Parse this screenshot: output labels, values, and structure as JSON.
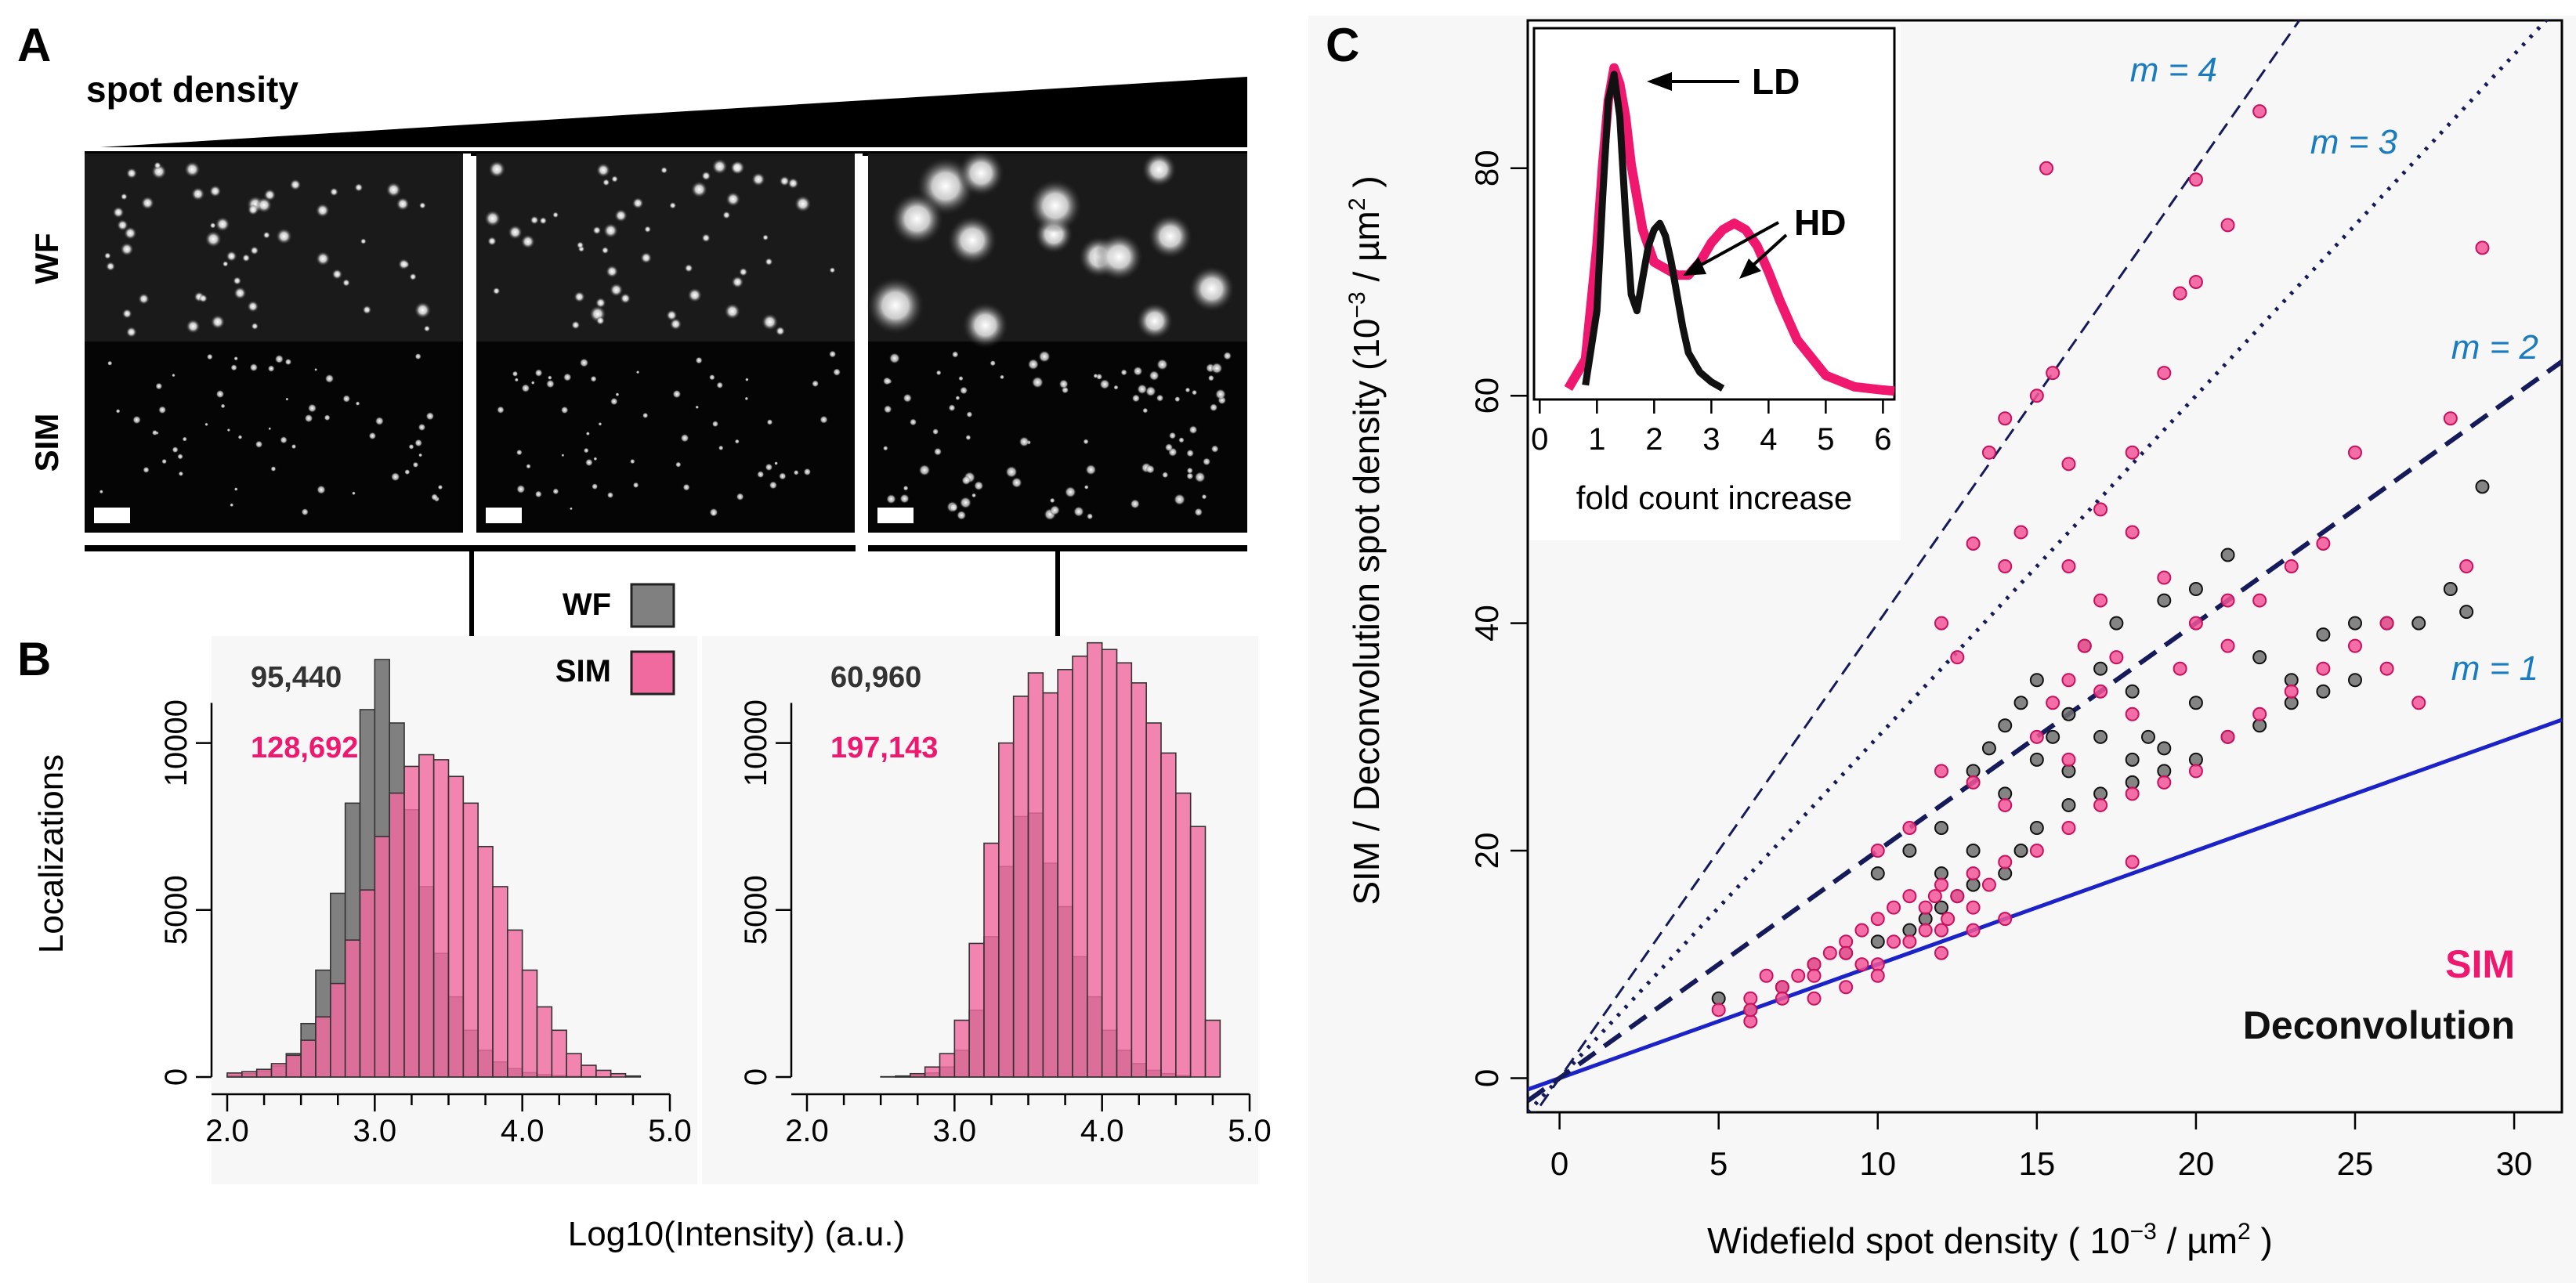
{
  "figure": {
    "panel_a": {
      "letter": "A",
      "gradient_label": "spot density",
      "row_labels": [
        "WF",
        "SIM"
      ],
      "tiles": 3,
      "scale_bar": "scale bar"
    },
    "panel_b": {
      "letter": "B",
      "ylabel": "Localizations",
      "xlabel": "Log10(Intensity) (a.u.)",
      "legend": [
        {
          "label": "WF",
          "color": "#808080"
        },
        {
          "label": "SIM",
          "color": "#f06aa0"
        }
      ]
    },
    "panel_c": {
      "letter": "C",
      "xlabel_main": "Widefield spot density ( 10",
      "xlabel_exp": "−3",
      "xlabel_tail": " / µm",
      "xlabel_sq": "2",
      "xlabel_close": " )",
      "ylabel_main": "SIM / Deconvolution spot density (10",
      "ylabel_exp": "−3",
      "ylabel_tail": " / µm",
      "ylabel_sq": "2",
      "ylabel_close": " )",
      "legend_sim": "SIM",
      "legend_deconv": "Deconvolution",
      "inset": {
        "xlabel": "fold count increase",
        "labels": [
          "LD",
          "HD"
        ]
      }
    },
    "colors": {
      "sim": "#f0186e",
      "sim_bar": "#f06aa0",
      "wf": "#808080",
      "deconv": "#2a2a2a",
      "line_m1": "#1a22c8",
      "slope_label": "#1a7cc0",
      "panel_bg": "#f7f7f7"
    }
  },
  "chart_data": [
    {
      "type": "bar",
      "panel": "B-left",
      "annotations": [
        "95,440",
        "128,692"
      ],
      "xlim": [
        2.0,
        5.0
      ],
      "ylim": [
        0,
        12500
      ],
      "xticks": [
        "2.0",
        "3.0",
        "4.0",
        "5.0"
      ],
      "yticks": [
        "0",
        "5000",
        "10000"
      ],
      "bin_start": 2.0,
      "bin_width": 0.1,
      "series": [
        {
          "name": "WF",
          "values": [
            50,
            100,
            180,
            330,
            700,
            1600,
            3200,
            5500,
            8200,
            11000,
            12500,
            10600,
            8000,
            5700,
            3700,
            2400,
            1400,
            800,
            450,
            250,
            130,
            70,
            40,
            20,
            10,
            5,
            0,
            0
          ]
        },
        {
          "name": "SIM",
          "values": [
            120,
            160,
            230,
            400,
            650,
            1100,
            1800,
            2800,
            4100,
            5600,
            7200,
            8500,
            9300,
            9650,
            9500,
            9000,
            8200,
            6900,
            5700,
            4400,
            3200,
            2100,
            1400,
            700,
            350,
            200,
            100,
            30
          ]
        }
      ]
    },
    {
      "type": "bar",
      "panel": "B-right",
      "annotations": [
        "60,960",
        "197,143"
      ],
      "xlim": [
        2.0,
        5.0
      ],
      "ylim": [
        0,
        12500
      ],
      "xticks": [
        "2.0",
        "3.0",
        "4.0",
        "5.0"
      ],
      "yticks": [
        "0",
        "5000",
        "10000"
      ],
      "bin_start": 2.0,
      "bin_width": 0.1,
      "series": [
        {
          "name": "WF",
          "values": [
            0,
            0,
            0,
            0,
            0,
            10,
            20,
            50,
            120,
            300,
            800,
            2000,
            4200,
            6300,
            7800,
            7900,
            6400,
            5100,
            3600,
            2400,
            1400,
            800,
            400,
            200,
            100,
            40,
            0,
            0
          ]
        },
        {
          "name": "SIM",
          "values": [
            0,
            0,
            0,
            0,
            0,
            0,
            30,
            100,
            300,
            700,
            1700,
            4000,
            7000,
            10000,
            11400,
            12100,
            11500,
            12200,
            12600,
            13000,
            12800,
            12400,
            11800,
            10600,
            9700,
            8500,
            7500,
            1700
          ]
        }
      ]
    },
    {
      "type": "scatter",
      "panel": "C",
      "xlim": [
        -1,
        31.5
      ],
      "ylim": [
        -3,
        93
      ],
      "xticks": [
        0,
        5,
        10,
        15,
        20,
        25,
        30
      ],
      "yticks": [
        0,
        20,
        40,
        60,
        80
      ],
      "lines": [
        {
          "label": "m = 1",
          "slope": 1,
          "intercept": 0
        },
        {
          "label": "m = 2",
          "slope": 2,
          "intercept": 0
        },
        {
          "label": "m = 3",
          "slope": 3,
          "intercept": 0
        },
        {
          "label": "m = 4",
          "slope": 4,
          "intercept": 0
        }
      ],
      "series": [
        {
          "name": "SIM",
          "points": [
            [
              5,
              6
            ],
            [
              6,
              7
            ],
            [
              6.5,
              9
            ],
            [
              7,
              8
            ],
            [
              7.5,
              9
            ],
            [
              8,
              10
            ],
            [
              8.5,
              11
            ],
            [
              9,
              12
            ],
            [
              9.5,
              13
            ],
            [
              10,
              14
            ],
            [
              10.5,
              15
            ],
            [
              11,
              16
            ],
            [
              11.5,
              15
            ],
            [
              12,
              17
            ],
            [
              12.5,
              16
            ],
            [
              13,
              18
            ],
            [
              13.5,
              17
            ],
            [
              14,
              19
            ],
            [
              9,
              8
            ],
            [
              10,
              10
            ],
            [
              11,
              12
            ],
            [
              12,
              13
            ],
            [
              6,
              5
            ],
            [
              8,
              7
            ],
            [
              10,
              9
            ],
            [
              12,
              11
            ],
            [
              13,
              13
            ],
            [
              14,
              14
            ],
            [
              15,
              20
            ],
            [
              16,
              22
            ],
            [
              17,
              24
            ],
            [
              18,
              25
            ],
            [
              19,
              26
            ],
            [
              20,
              27
            ],
            [
              21,
              30
            ],
            [
              22,
              32
            ],
            [
              23,
              34
            ],
            [
              24,
              36
            ],
            [
              25,
              38
            ],
            [
              26,
              40
            ],
            [
              15,
              30
            ],
            [
              15.5,
              33
            ],
            [
              16,
              35
            ],
            [
              16.5,
              38
            ],
            [
              17,
              42
            ],
            [
              14,
              45
            ],
            [
              14.5,
              48
            ],
            [
              13.5,
              55
            ],
            [
              14,
              58
            ],
            [
              15,
              60
            ],
            [
              15.5,
              62
            ],
            [
              16,
              54
            ],
            [
              13,
              47
            ],
            [
              12,
              40
            ],
            [
              12.5,
              37
            ],
            [
              16,
              45
            ],
            [
              17,
              50
            ],
            [
              18,
              55
            ],
            [
              19,
              62
            ],
            [
              20,
              70
            ],
            [
              21,
              75
            ],
            [
              22,
              85
            ],
            [
              18,
              48
            ],
            [
              19,
              44
            ],
            [
              20,
              40
            ],
            [
              21,
              38
            ],
            [
              22,
              42
            ],
            [
              23,
              45
            ],
            [
              24,
              47
            ],
            [
              25,
              55
            ],
            [
              26,
              36
            ],
            [
              27,
              33
            ],
            [
              28,
              58
            ],
            [
              29,
              73
            ],
            [
              28.5,
              45
            ],
            [
              15.3,
              80
            ],
            [
              20,
              79
            ],
            [
              19.5,
              69
            ],
            [
              21,
              42
            ],
            [
              17,
              34
            ],
            [
              12,
              27
            ],
            [
              11,
              22
            ],
            [
              10,
              20
            ],
            [
              13,
              26
            ],
            [
              16,
              28
            ],
            [
              14,
              24
            ],
            [
              18,
              19
            ],
            [
              18,
              32
            ],
            [
              19.5,
              36
            ],
            [
              17.5,
              37
            ],
            [
              13,
              15
            ],
            [
              11.5,
              13
            ],
            [
              9,
              11
            ],
            [
              8,
              9
            ],
            [
              7,
              7
            ],
            [
              6,
              6
            ],
            [
              10.5,
              12
            ],
            [
              12.2,
              14
            ],
            [
              11.8,
              16
            ],
            [
              9.5,
              10
            ]
          ]
        },
        {
          "name": "Deconvolution",
          "points": [
            [
              5,
              7
            ],
            [
              6,
              6
            ],
            [
              7,
              8
            ],
            [
              8,
              10
            ],
            [
              9,
              11
            ],
            [
              10,
              12
            ],
            [
              11,
              13
            ],
            [
              12,
              15
            ],
            [
              12.5,
              16
            ],
            [
              13,
              17
            ],
            [
              14,
              18
            ],
            [
              14.5,
              20
            ],
            [
              15,
              22
            ],
            [
              16,
              24
            ],
            [
              17,
              25
            ],
            [
              18,
              26
            ],
            [
              19,
              27
            ],
            [
              20,
              28
            ],
            [
              21,
              30
            ],
            [
              22,
              31
            ],
            [
              23,
              33
            ],
            [
              24,
              34
            ],
            [
              25,
              35
            ],
            [
              26,
              40
            ],
            [
              27,
              40
            ],
            [
              28,
              43
            ],
            [
              29,
              52
            ],
            [
              28.5,
              41
            ],
            [
              13,
              27
            ],
            [
              13.5,
              29
            ],
            [
              14,
              31
            ],
            [
              14.5,
              33
            ],
            [
              15,
              35
            ],
            [
              15.5,
              30
            ],
            [
              16,
              27
            ],
            [
              16.5,
              38
            ],
            [
              17,
              36
            ],
            [
              17.5,
              40
            ],
            [
              18,
              34
            ],
            [
              18.5,
              30
            ],
            [
              19,
              42
            ],
            [
              20,
              43
            ],
            [
              21,
              46
            ],
            [
              22,
              37
            ],
            [
              23,
              35
            ],
            [
              24,
              39
            ],
            [
              25,
              40
            ],
            [
              12,
              22
            ],
            [
              11,
              20
            ],
            [
              10,
              18
            ],
            [
              14,
              25
            ],
            [
              15,
              28
            ],
            [
              16,
              32
            ],
            [
              17,
              30
            ],
            [
              18,
              28
            ],
            [
              19,
              29
            ],
            [
              20,
              33
            ],
            [
              13,
              20
            ],
            [
              12,
              18
            ],
            [
              11.5,
              14
            ]
          ]
        }
      ]
    },
    {
      "type": "line",
      "panel": "C-inset",
      "xlim": [
        -0.1,
        6.2
      ],
      "ylim": [
        0,
        1.05
      ],
      "xticks": [
        0,
        1,
        2,
        3,
        4,
        5,
        6
      ],
      "series": [
        {
          "name": "LD",
          "x": [
            0.8,
            1.0,
            1.1,
            1.2,
            1.3,
            1.4,
            1.5,
            1.6,
            1.7,
            1.8,
            1.9,
            2.0,
            2.1,
            2.2,
            2.3,
            2.4,
            2.5,
            2.6,
            2.8,
            3.0,
            3.2
          ],
          "y": [
            0.02,
            0.25,
            0.6,
            0.9,
            0.98,
            0.85,
            0.55,
            0.3,
            0.25,
            0.35,
            0.45,
            0.5,
            0.52,
            0.48,
            0.4,
            0.3,
            0.2,
            0.12,
            0.06,
            0.03,
            0.01
          ]
        },
        {
          "name": "HD",
          "x": [
            0.5,
            0.8,
            1.0,
            1.1,
            1.2,
            1.3,
            1.4,
            1.5,
            1.6,
            1.8,
            2.0,
            2.2,
            2.4,
            2.6,
            2.8,
            3.0,
            3.2,
            3.4,
            3.6,
            3.8,
            4.0,
            4.2,
            4.5,
            5.0,
            5.5,
            6.0,
            6.2
          ],
          "y": [
            0.01,
            0.1,
            0.45,
            0.7,
            0.9,
            1.0,
            0.95,
            0.85,
            0.7,
            0.5,
            0.4,
            0.38,
            0.36,
            0.36,
            0.4,
            0.46,
            0.5,
            0.52,
            0.5,
            0.45,
            0.37,
            0.28,
            0.16,
            0.05,
            0.015,
            0.005,
            0.002
          ]
        }
      ]
    }
  ]
}
